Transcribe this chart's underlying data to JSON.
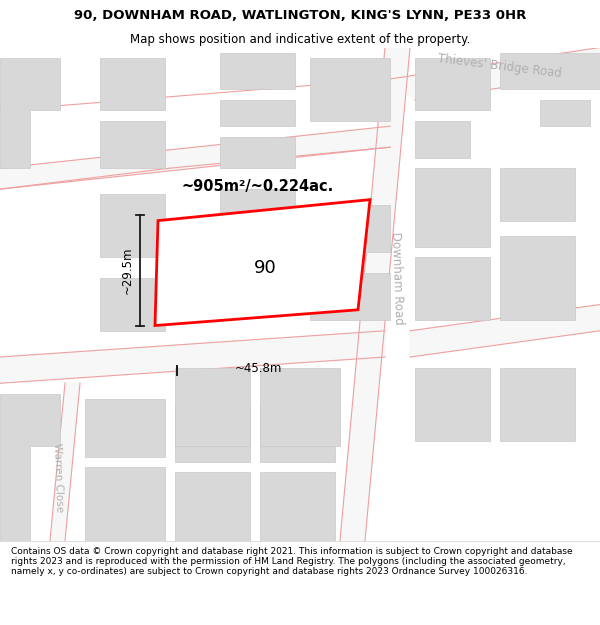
{
  "title_line1": "90, DOWNHAM ROAD, WATLINGTON, KING'S LYNN, PE33 0HR",
  "title_line2": "Map shows position and indicative extent of the property.",
  "footer_text": "Contains OS data © Crown copyright and database right 2021. This information is subject to Crown copyright and database rights 2023 and is reproduced with the permission of HM Land Registry. The polygons (including the associated geometry, namely x, y co-ordinates) are subject to Crown copyright and database rights 2023 Ordnance Survey 100026316.",
  "map_bg": "#ffffff",
  "road_fill": "#f7f7f7",
  "road_stroke": "#f0a0a0",
  "building_fill": "#d8d8d8",
  "building_stroke": "#c8c8c8",
  "plot_stroke": "#ff0000",
  "plot_fill": "#ffffff",
  "dim_color": "#1a1a1a",
  "road_label_color": "#b0b0b0",
  "area_label": "~905m²/~0.224ac.",
  "plot_label": "90",
  "width_label": "~45.8m",
  "height_label": "~29.5m",
  "road_name_1": "Thieves' Bridge Road",
  "road_name_2": "Downham Road",
  "road_name_3": "Warren Close",
  "title_fontsize": 9.5,
  "subtitle_fontsize": 8.5,
  "footer_fontsize": 6.5
}
